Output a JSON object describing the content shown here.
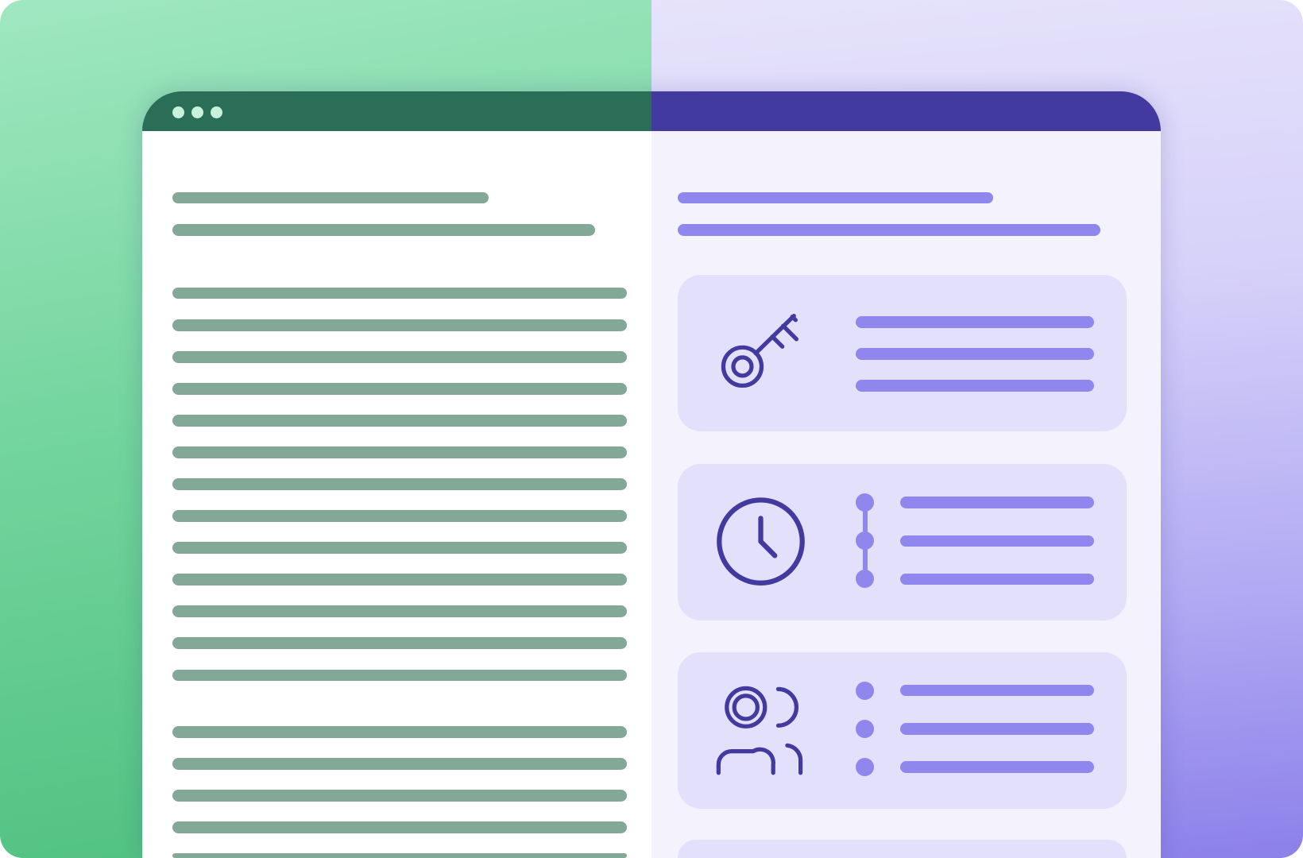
{
  "colors": {
    "left_header": "#2b6e58",
    "right_header": "#433a9f",
    "left_placeholder_lines": "#83a898",
    "right_placeholder_lines": "#8f87ee",
    "card_background": "#e3e0fb",
    "icon_stroke": "#433a9f"
  },
  "window": {
    "controls": [
      "dot",
      "dot",
      "dot"
    ]
  },
  "cards": [
    {
      "icon": "key-icon",
      "list_style": "plain"
    },
    {
      "icon": "clock-icon",
      "list_style": "timeline"
    },
    {
      "icon": "users-icon",
      "list_style": "bullets"
    }
  ]
}
